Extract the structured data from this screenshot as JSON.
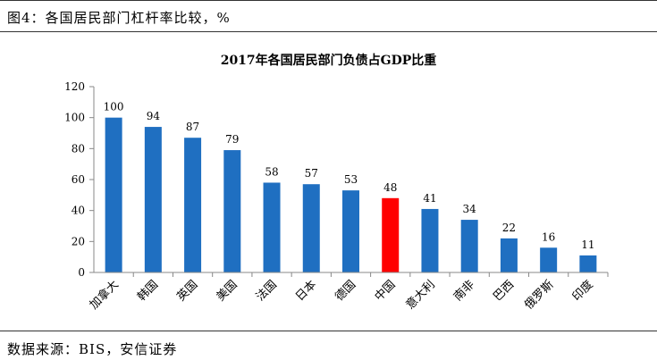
{
  "figure": {
    "label": "图4：各国居民部门杠杆率比较，%",
    "source": "数据来源：BIS，安信证券"
  },
  "chart_data": {
    "type": "bar",
    "title": "2017年各国居民部门负债占GDP比重",
    "xlabel": "",
    "ylabel": "",
    "categories": [
      "加拿大",
      "韩国",
      "英国",
      "美国",
      "法国",
      "日本",
      "德国",
      "中国",
      "意大利",
      "南非",
      "巴西",
      "俄罗斯",
      "印度"
    ],
    "values": [
      100,
      94,
      87,
      79,
      58,
      57,
      53,
      48,
      41,
      34,
      22,
      16,
      11
    ],
    "ylim": [
      0,
      120
    ],
    "yticks": [
      0,
      20,
      40,
      60,
      80,
      100,
      120
    ],
    "grid": false,
    "legend": "none",
    "colors": {
      "bar": "#1f6fc1",
      "highlight": "#ff0000",
      "axis": "#888888"
    },
    "highlight_category": "中国"
  }
}
